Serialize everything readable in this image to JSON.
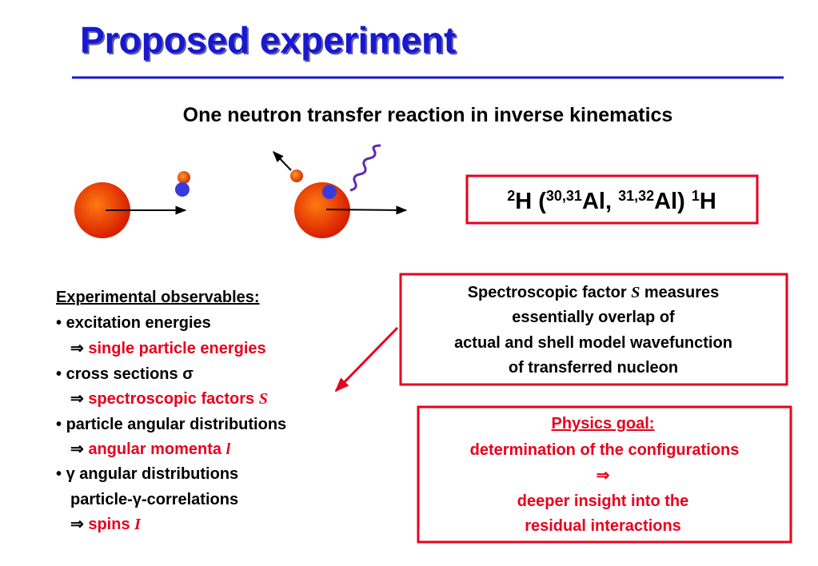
{
  "title": "Proposed experiment",
  "subtitle": "One neutron transfer reaction in inverse kinematics",
  "reaction": {
    "parts": [
      "2",
      "H (",
      "30,31",
      "Al, ",
      "31,32",
      "Al) ",
      "1",
      "H"
    ]
  },
  "observables": {
    "heading": "Experimental observables:",
    "lines": [
      [
        "•",
        "excitation energies"
      ],
      [
        "⇒",
        "single particle energies"
      ],
      [
        "•",
        "cross sections",
        "σ"
      ],
      [
        "⇒",
        "spectroscopic factors",
        "S"
      ],
      [
        "•",
        "particle angular distributions"
      ],
      [
        "⇒",
        "angular momenta",
        "l"
      ],
      [
        "•",
        "γ",
        "angular distributions"
      ],
      [
        "particle-",
        "γ",
        "-correlations"
      ],
      [
        "⇒",
        "spins",
        "I"
      ]
    ]
  },
  "spectroscopic_box": {
    "lines": [
      [
        "Spectroscopic factor",
        "S",
        "measures"
      ],
      [
        "essentially overlap of"
      ],
      [
        "actual and shell model wavefunction"
      ],
      [
        "of transferred nucleon"
      ]
    ]
  },
  "physics_goal": {
    "heading": "Physics goal:",
    "lines": [
      "determination of the configurations",
      "⇒",
      "deeper insight into the",
      "residual interactions"
    ]
  }
}
